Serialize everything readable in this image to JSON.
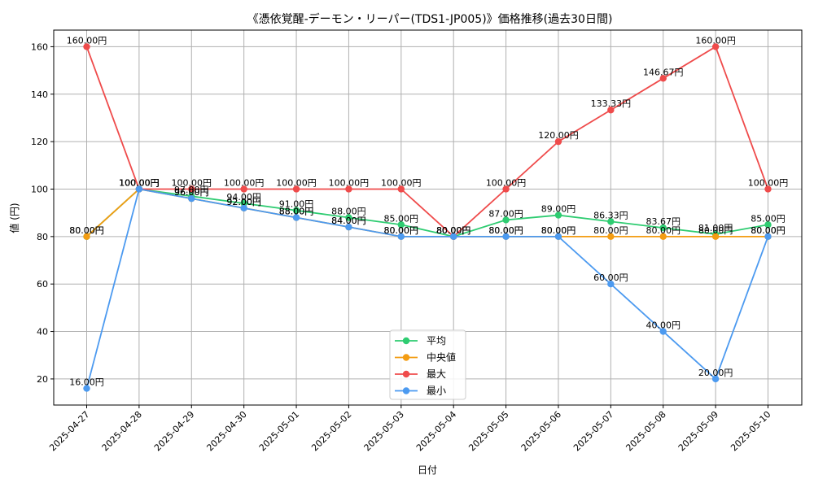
{
  "chart_data": {
    "type": "line",
    "title": "《憑依覚醒-デーモン・リーパー(TDS1-JP005)》価格推移(過去30日間)",
    "xlabel": "日付",
    "ylabel": "値 (円)",
    "categories": [
      "2025-04-27",
      "2025-04-28",
      "2025-04-29",
      "2025-04-30",
      "2025-05-01",
      "2025-05-02",
      "2025-05-03",
      "2025-05-04",
      "2025-05-05",
      "2025-05-06",
      "2025-05-07",
      "2025-05-08",
      "2025-05-09",
      "2025-05-10"
    ],
    "ylim": [
      9,
      167
    ],
    "yticks": [
      20,
      40,
      60,
      80,
      100,
      120,
      140,
      160
    ],
    "grid": true,
    "legend_position": "bottom-center",
    "series": [
      {
        "name": "平均",
        "color": "#2ecc71",
        "values": [
          80,
          100,
          97,
          94,
          91,
          88,
          85,
          80,
          87,
          89,
          86.33,
          83.67,
          81,
          85
        ],
        "labels": [
          "80.00円",
          "100.00円",
          "97.00円",
          "94.00円",
          "91.00円",
          "88.00円",
          "85.00円",
          "80.00円",
          "87.00円",
          "89.00円",
          "86.33円",
          "83.67円",
          "81.00円",
          "85.00円"
        ]
      },
      {
        "name": "中央値",
        "color": "#f39c12",
        "values": [
          80,
          100,
          96,
          92,
          88,
          84,
          80,
          80,
          80,
          80,
          80,
          80,
          80,
          80
        ],
        "labels": [
          "80.00円",
          "100.00円",
          "96.00円",
          "92.00円",
          "88.00円",
          "84.00円",
          "80.00円",
          "80.00円",
          "80.00円",
          "80.00円",
          "80.00円",
          "80.00円",
          "80.00円",
          "80.00円"
        ]
      },
      {
        "name": "最大",
        "color": "#ef4b4b",
        "values": [
          160,
          100,
          100,
          100,
          100,
          100,
          100,
          80,
          100,
          120,
          133.33,
          146.67,
          160,
          100
        ],
        "labels": [
          "160.00円",
          "100.00円",
          "100.00円",
          "100.00円",
          "100.00円",
          "100.00円",
          "100.00円",
          "80.00円",
          "100.00円",
          "120.00円",
          "133.33円",
          "146.67円",
          "160.00円",
          "100.00円"
        ]
      },
      {
        "name": "最小",
        "color": "#4c9af0",
        "values": [
          16,
          100,
          96,
          92,
          88,
          84,
          80,
          80,
          80,
          80,
          60,
          40,
          20,
          80
        ],
        "labels": [
          "16.00円",
          "100.00円",
          "96.00円",
          "92.00円",
          "88.00円",
          "84.00円",
          "80.00円",
          "80.00円",
          "80.00円",
          "80.00円",
          "60.00円",
          "40.00円",
          "20.00円",
          "80.00円"
        ]
      }
    ]
  }
}
